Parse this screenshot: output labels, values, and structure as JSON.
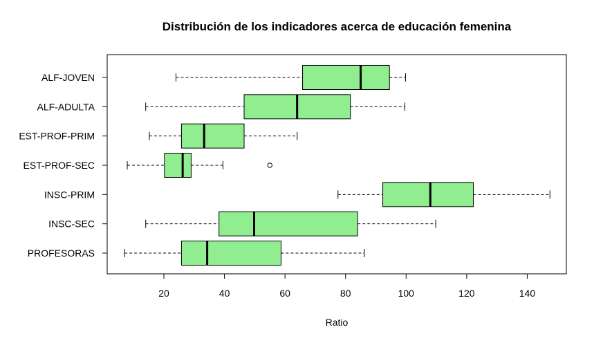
{
  "chart_data": {
    "type": "boxplot",
    "orientation": "horizontal",
    "title": "Distribución de los indicadores acerca de educación femenina",
    "xlabel": "Ratio",
    "ylabel": "",
    "xlim": [
      3,
      154
    ],
    "xticks": [
      20,
      40,
      60,
      80,
      100,
      120,
      140
    ],
    "grid": false,
    "legend": "none",
    "box_fill": "#90EE90",
    "categories": [
      "ALF-JOVEN",
      "ALF-ADULTA",
      "EST-PROF-PRIM",
      "EST-PROF-SEC",
      "INSC-PRIM",
      "INSC-SEC",
      "PROFESORAS"
    ],
    "series": [
      {
        "label": "ALF-JOVEN",
        "min": 24,
        "q1": 65.8,
        "median": 85,
        "q3": 94.5,
        "max": 99.8,
        "outliers": []
      },
      {
        "label": "ALF-ADULTA",
        "min": 14,
        "q1": 46.5,
        "median": 64,
        "q3": 81.6,
        "max": 99.6,
        "outliers": []
      },
      {
        "label": "EST-PROF-PRIM",
        "min": 15.2,
        "q1": 25.8,
        "median": 33.3,
        "q3": 46.5,
        "max": 64,
        "outliers": []
      },
      {
        "label": "EST-PROF-SEC",
        "min": 7.9,
        "q1": 20.2,
        "median": 26.2,
        "q3": 29,
        "max": 39.5,
        "outliers": [
          55
        ]
      },
      {
        "label": "INSC-PRIM",
        "min": 77.5,
        "q1": 92.3,
        "median": 108,
        "q3": 122.2,
        "max": 147.5,
        "outliers": []
      },
      {
        "label": "INSC-SEC",
        "min": 14,
        "q1": 38.2,
        "median": 49.8,
        "q3": 84,
        "max": 109.8,
        "outliers": []
      },
      {
        "label": "PROFESORAS",
        "min": 7,
        "q1": 25.8,
        "median": 34.3,
        "q3": 58.7,
        "max": 86.2,
        "outliers": []
      }
    ]
  }
}
